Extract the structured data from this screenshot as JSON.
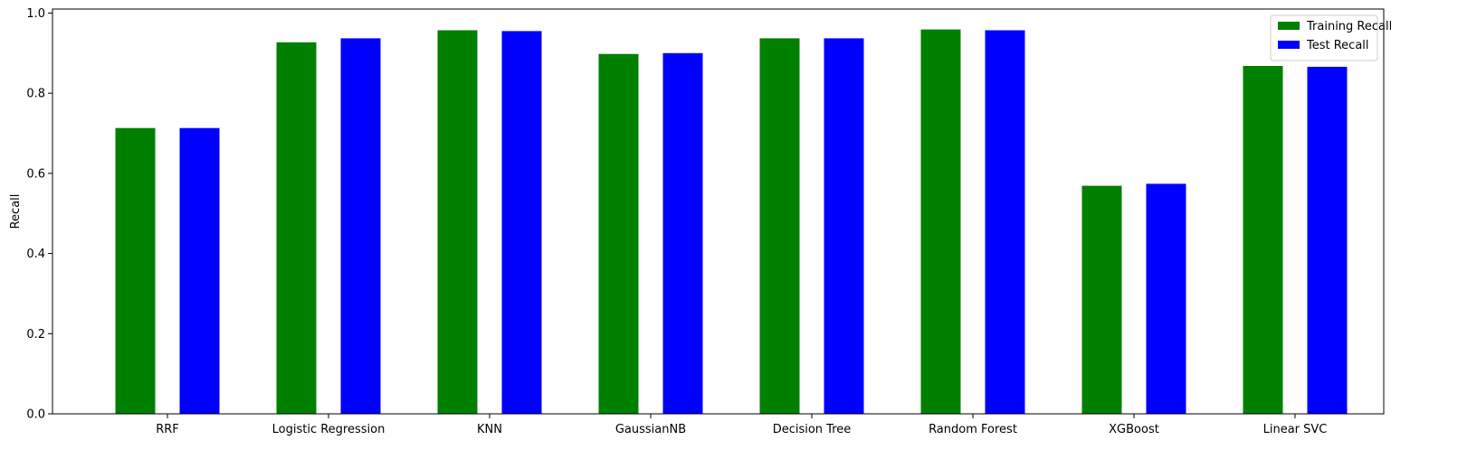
{
  "chart_data": {
    "type": "bar",
    "ylabel": "Recall",
    "ylim": [
      0,
      1.01
    ],
    "yticks": [
      0.0,
      0.2,
      0.4,
      0.6,
      0.8,
      1.0
    ],
    "yticks_text": [
      "0.0",
      "0.2",
      "0.4",
      "0.6",
      "0.8",
      "1.0"
    ],
    "categories": [
      "RRF",
      "Logistic Regression",
      "KNN",
      "GaussianNB",
      "Decision Tree",
      "Random Forest",
      "XGBoost",
      "Linear SVC"
    ],
    "series": [
      {
        "name": "Training Recall",
        "color": "#008000",
        "values": [
          0.713,
          0.927,
          0.957,
          0.898,
          0.937,
          0.959,
          0.569,
          0.868
        ]
      },
      {
        "name": "Test Recall",
        "color": "#0000ff",
        "values": [
          0.713,
          0.937,
          0.955,
          0.9,
          0.937,
          0.957,
          0.574,
          0.866
        ]
      }
    ],
    "legend_position": "top-right",
    "grid": false
  }
}
